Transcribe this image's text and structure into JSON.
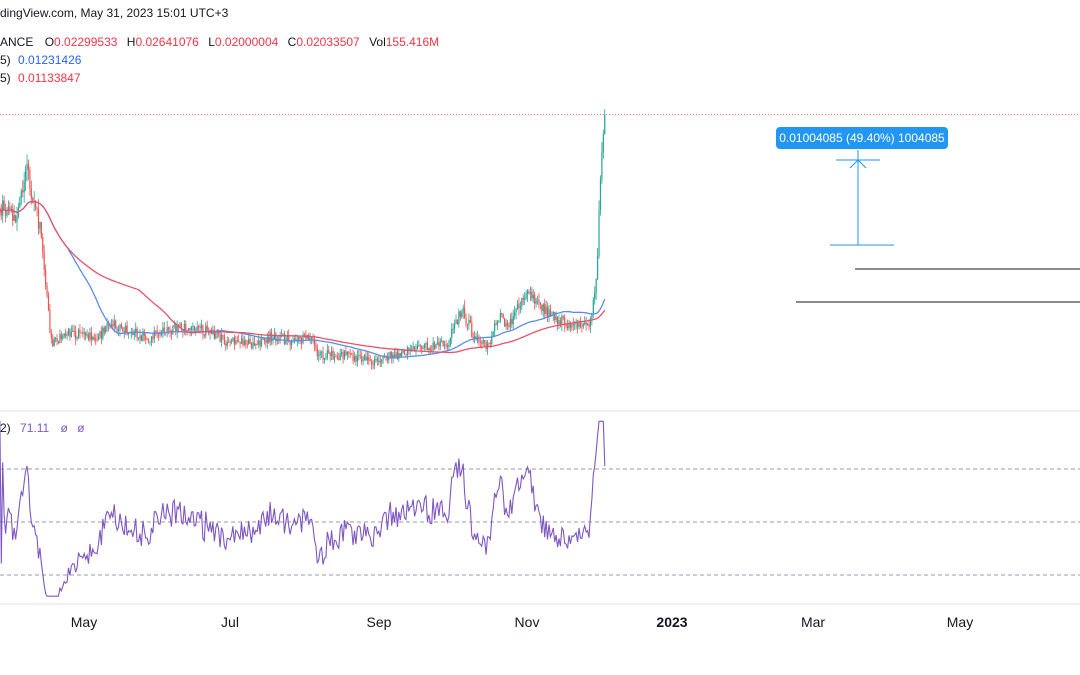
{
  "header": {
    "source": "dingView.com, May 31, 2023 15:01 UTC+3",
    "exchange": "ANCE",
    "ohlc": [
      {
        "key": "O",
        "value": "0.02299533"
      },
      {
        "key": "H",
        "value": "0.02641076"
      },
      {
        "key": "L",
        "value": "0.02000004"
      },
      {
        "key": "C",
        "value": "0.02033507"
      }
    ],
    "vol_label": "Vol",
    "vol_value": "155.416M",
    "ma1_prefix": "5)",
    "ma1_value": "0.01231426",
    "ma2_prefix": "5)",
    "ma2_value": "0.01133847"
  },
  "rsi_label": {
    "prefix": "2)",
    "value": "71.11",
    "extra1": "ø",
    "extra2": "ø"
  },
  "measure_label": "0.01004085 (49.40%) 1004085",
  "colors": {
    "up": "#26a69a",
    "down": "#ef5350",
    "ma_blue": "#5b8de8",
    "ma_red": "#e8516a",
    "rsi": "#7e57c2",
    "measure": "#2196f3"
  },
  "chart_data": [
    {
      "type": "candlestick",
      "x_tick_labels": [
        "May",
        "Jul",
        "Sep",
        "Nov",
        "2023",
        "Mar",
        "May"
      ],
      "approx_close": [
        {
          "t": "2022-04-05",
          "v": 0.016
        },
        {
          "t": "2022-04-15",
          "v": 0.0155
        },
        {
          "t": "2022-04-22",
          "v": 0.0178
        },
        {
          "t": "2022-05-01",
          "v": 0.015
        },
        {
          "t": "2022-05-09",
          "v": 0.0098
        },
        {
          "t": "2022-05-20",
          "v": 0.0102
        },
        {
          "t": "2022-06-10",
          "v": 0.01
        },
        {
          "t": "2022-06-20",
          "v": 0.0106
        },
        {
          "t": "2022-07-15",
          "v": 0.01
        },
        {
          "t": "2022-08-10",
          "v": 0.0105
        },
        {
          "t": "2022-08-25",
          "v": 0.0103
        },
        {
          "t": "2022-09-10",
          "v": 0.0098
        },
        {
          "t": "2022-10-01",
          "v": 0.0097
        },
        {
          "t": "2022-10-10",
          "v": 0.0101
        },
        {
          "t": "2022-10-25",
          "v": 0.0098
        },
        {
          "t": "2022-11-05",
          "v": 0.01
        },
        {
          "t": "2022-11-12",
          "v": 0.0092
        },
        {
          "t": "2022-12-01",
          "v": 0.0092
        },
        {
          "t": "2022-12-20",
          "v": 0.0089
        },
        {
          "t": "2023-01-15",
          "v": 0.0094
        },
        {
          "t": "2023-02-10",
          "v": 0.0097
        },
        {
          "t": "2023-02-20",
          "v": 0.0113
        },
        {
          "t": "2023-03-01",
          "v": 0.01
        },
        {
          "t": "2023-03-10",
          "v": 0.0096
        },
        {
          "t": "2023-03-18",
          "v": 0.011
        },
        {
          "t": "2023-03-25",
          "v": 0.0106
        },
        {
          "t": "2023-04-05",
          "v": 0.0121
        },
        {
          "t": "2023-04-15",
          "v": 0.0115
        },
        {
          "t": "2023-04-25",
          "v": 0.011
        },
        {
          "t": "2023-05-10",
          "v": 0.0105
        },
        {
          "t": "2023-05-20",
          "v": 0.0107
        },
        {
          "t": "2023-05-25",
          "v": 0.0124
        },
        {
          "t": "2023-05-28",
          "v": 0.0173
        },
        {
          "t": "2023-05-31",
          "v": 0.0203
        }
      ],
      "ma_blue_last": 0.01231426,
      "ma_red_last": 0.01133847
    },
    {
      "type": "line",
      "name": "RSI",
      "last": 71.11,
      "reference_levels": [
        30,
        50,
        70
      ]
    }
  ]
}
